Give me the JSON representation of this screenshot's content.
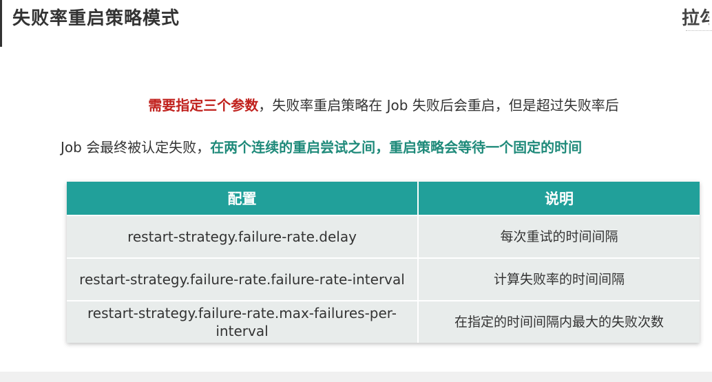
{
  "header": {
    "title": "失败率重启策略模式",
    "brand": "拉勾"
  },
  "intro": {
    "line1_highlight": "需要指定三个参数",
    "line1_rest": "，失败率重启策略在 Job 失败后会重启，但是超过失败率后",
    "line2_start": "Job 会最终被认定失败，",
    "line2_highlight": "在两个连续的重启尝试之间，重启策略会等待一个固定的时间"
  },
  "table": {
    "headers": [
      "配置",
      "说明"
    ],
    "rows": [
      {
        "config": "restart-strategy.failure-rate.delay",
        "desc": "每次重试的时间间隔"
      },
      {
        "config": "restart-strategy.failure-rate.failure-rate-interval",
        "desc": "计算失败率的时间间隔"
      },
      {
        "config": "restart-strategy.failure-rate.max-failures-per-interval",
        "desc": "在指定的时间间隔内最大的失败次数"
      }
    ]
  },
  "colors": {
    "header_bg": "#21a09a",
    "highlight_red": "#c0201c",
    "highlight_teal": "#1f8a7a",
    "cell_bg": "#e8eceb"
  }
}
